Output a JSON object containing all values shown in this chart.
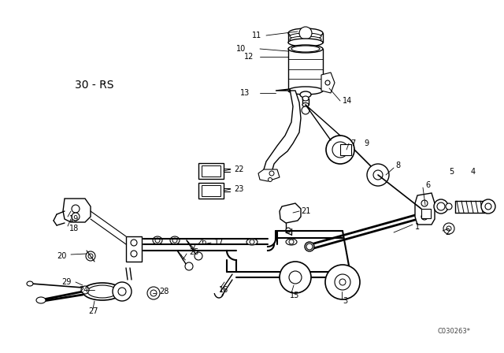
{
  "bg_color": "#ffffff",
  "line_color": "#000000",
  "diagram_label": "30 - RS",
  "watermark": "C030263*",
  "fig_width": 6.4,
  "fig_height": 4.48,
  "dpi": 100,
  "label_fontsize": 7,
  "title_fontsize": 10
}
